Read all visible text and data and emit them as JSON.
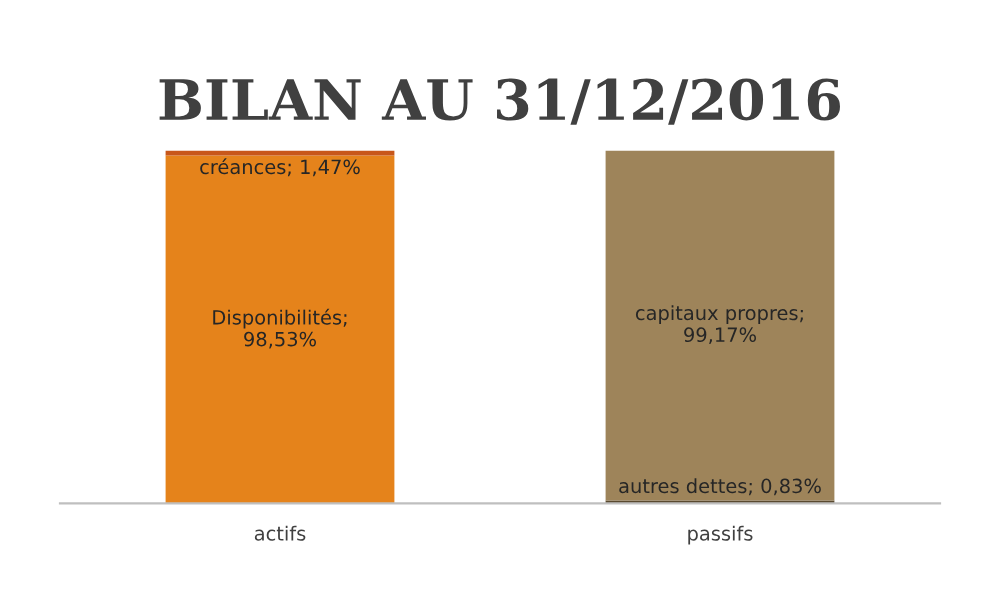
{
  "chart_data": {
    "type": "bar",
    "title": "BILAN AU 31/12/2016",
    "categories": [
      "actifs",
      "passifs"
    ],
    "stacked": true,
    "series": [
      {
        "colors": [
          "#e5831b",
          "#5a4a30"
        ],
        "values": [
          98.53,
          0.83
        ],
        "value_labels": [
          "Disponibilités;\n98,53%",
          "autres dettes; 0,83%"
        ]
      },
      {
        "colors": [
          "#c8571a",
          "#9e845a"
        ],
        "values": [
          1.47,
          99.17
        ],
        "value_labels": [
          "créances; 1,47%",
          "capitaux propres;\n99,17%"
        ]
      }
    ]
  }
}
